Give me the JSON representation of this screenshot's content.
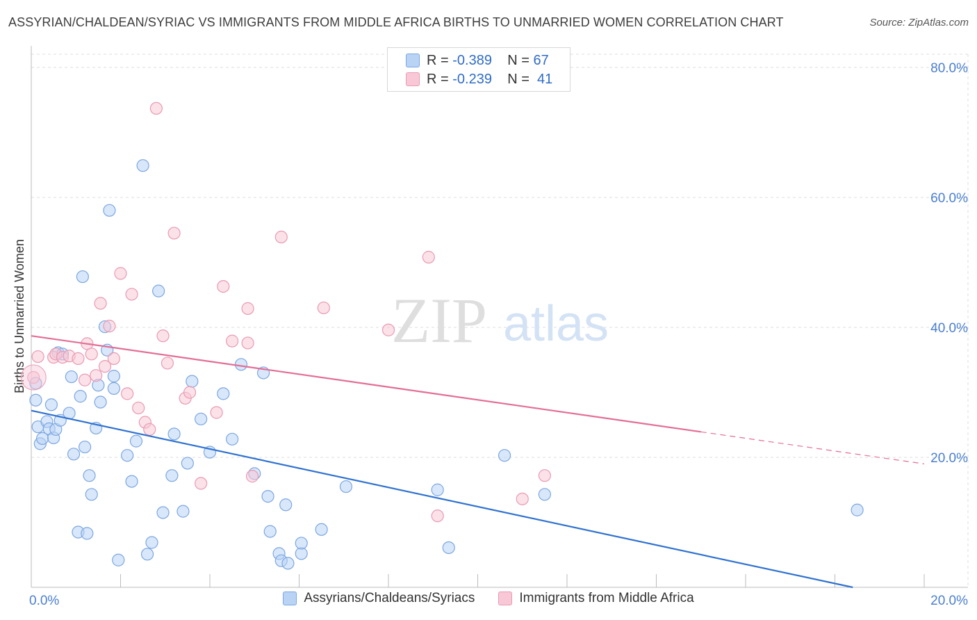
{
  "title": "ASSYRIAN/CHALDEAN/SYRIAC VS IMMIGRANTS FROM MIDDLE AFRICA BIRTHS TO UNMARRIED WOMEN CORRELATION CHART",
  "source": "Source: ZipAtlas.com",
  "watermark": {
    "zip": "ZIP",
    "atlas": "atlas"
  },
  "stats": [
    {
      "r_label": "R =",
      "r_value": "-0.389",
      "n_label": "N =",
      "n_value": "67"
    },
    {
      "r_label": "R =",
      "r_value": "-0.239",
      "n_label": "N =",
      "n_value": "41"
    }
  ],
  "legend": [
    "Assyrians/Chaldeans/Syriacs",
    "Immigrants from Middle Africa"
  ],
  "colors": {
    "blue_fill": "#b9d3f5",
    "blue_stroke": "#7ba6e0",
    "blue_line": "#2f72d0",
    "pink_fill": "#f8c8d6",
    "pink_stroke": "#e99ab3",
    "pink_line": "#e36d94",
    "tick_label": "#4a7fcf",
    "grid": "#dddddd"
  },
  "chart_data": {
    "type": "scatter",
    "title": "ASSYRIAN/CHALDEAN/SYRIAC VS IMMIGRANTS FROM MIDDLE AFRICA BIRTHS TO UNMARRIED WOMEN CORRELATION CHART",
    "xlabel": "",
    "ylabel": "Births to Unmarried Women",
    "xlim": [
      0,
      20
    ],
    "ylim": [
      0,
      80
    ],
    "x_tick_labels": [
      "0.0%",
      "20.0%"
    ],
    "y_ticks": [
      20,
      40,
      60,
      80
    ],
    "y_tick_labels": [
      "20.0%",
      "40.0%",
      "60.0%",
      "80.0%"
    ],
    "legend_position": "bottom-center",
    "grid": true,
    "series": [
      {
        "name": "Assyrians/Chaldeans/Syriacs",
        "color": "#2f72d0",
        "trend": {
          "x0": 0,
          "y0": 27.2,
          "x1": 18.4,
          "y1": 0,
          "solid_until": 18.4
        },
        "points": [
          [
            0.1,
            31.4
          ],
          [
            0.1,
            28.8
          ],
          [
            0.15,
            24.7
          ],
          [
            0.2,
            22.1
          ],
          [
            0.25,
            22.9
          ],
          [
            0.35,
            25.5
          ],
          [
            0.4,
            24.4
          ],
          [
            0.45,
            28.1
          ],
          [
            0.5,
            23.0
          ],
          [
            0.55,
            24.3
          ],
          [
            0.6,
            36.1
          ],
          [
            0.65,
            25.7
          ],
          [
            0.7,
            35.9
          ],
          [
            0.85,
            26.8
          ],
          [
            0.9,
            32.4
          ],
          [
            0.95,
            20.5
          ],
          [
            1.05,
            8.5
          ],
          [
            1.1,
            29.4
          ],
          [
            1.15,
            47.8
          ],
          [
            1.2,
            21.6
          ],
          [
            1.25,
            8.3
          ],
          [
            1.3,
            17.2
          ],
          [
            1.35,
            14.3
          ],
          [
            1.45,
            24.5
          ],
          [
            1.5,
            31.1
          ],
          [
            1.55,
            28.5
          ],
          [
            1.65,
            40.1
          ],
          [
            1.7,
            36.5
          ],
          [
            1.75,
            58.0
          ],
          [
            1.85,
            32.5
          ],
          [
            1.85,
            30.6
          ],
          [
            1.95,
            4.2
          ],
          [
            2.15,
            20.3
          ],
          [
            2.25,
            16.3
          ],
          [
            2.35,
            22.5
          ],
          [
            2.5,
            64.9
          ],
          [
            2.6,
            5.1
          ],
          [
            2.7,
            6.9
          ],
          [
            2.85,
            45.6
          ],
          [
            2.95,
            11.5
          ],
          [
            3.15,
            17.2
          ],
          [
            3.2,
            23.6
          ],
          [
            3.4,
            11.7
          ],
          [
            3.5,
            19.1
          ],
          [
            3.6,
            31.7
          ],
          [
            3.8,
            25.9
          ],
          [
            4.0,
            20.8
          ],
          [
            4.3,
            29.8
          ],
          [
            4.5,
            22.8
          ],
          [
            4.7,
            34.3
          ],
          [
            5.0,
            17.5
          ],
          [
            5.2,
            33.0
          ],
          [
            5.3,
            14.0
          ],
          [
            5.55,
            5.2
          ],
          [
            5.6,
            4.1
          ],
          [
            5.7,
            12.7
          ],
          [
            5.75,
            3.7
          ],
          [
            5.35,
            8.6
          ],
          [
            6.05,
            5.2
          ],
          [
            6.05,
            6.8
          ],
          [
            6.5,
            8.9
          ],
          [
            7.05,
            15.5
          ],
          [
            9.1,
            15.0
          ],
          [
            9.35,
            6.1
          ],
          [
            10.6,
            20.3
          ],
          [
            11.5,
            14.3
          ],
          [
            18.5,
            11.9
          ]
        ]
      },
      {
        "name": "Immigrants from Middle Africa",
        "color": "#e36d94",
        "trend": {
          "x0": 0,
          "y0": 38.7,
          "x1": 20,
          "y1": 19.0,
          "solid_until": 15.0
        },
        "points": [
          [
            0.05,
            32.3
          ],
          [
            0.15,
            35.5
          ],
          [
            0.5,
            35.4
          ],
          [
            0.55,
            35.9
          ],
          [
            0.7,
            35.4
          ],
          [
            0.85,
            35.6
          ],
          [
            1.05,
            35.2
          ],
          [
            1.2,
            31.9
          ],
          [
            1.25,
            37.5
          ],
          [
            1.35,
            35.9
          ],
          [
            1.45,
            32.6
          ],
          [
            1.55,
            43.7
          ],
          [
            1.65,
            34.0
          ],
          [
            1.75,
            40.2
          ],
          [
            1.85,
            35.2
          ],
          [
            2.0,
            48.3
          ],
          [
            2.15,
            29.8
          ],
          [
            2.25,
            45.1
          ],
          [
            2.4,
            27.6
          ],
          [
            2.55,
            25.4
          ],
          [
            2.65,
            24.3
          ],
          [
            2.95,
            38.7
          ],
          [
            3.05,
            34.5
          ],
          [
            3.2,
            54.5
          ],
          [
            3.45,
            29.1
          ],
          [
            3.55,
            30.0
          ],
          [
            3.8,
            16.0
          ],
          [
            4.15,
            26.9
          ],
          [
            4.3,
            46.3
          ],
          [
            4.5,
            37.9
          ],
          [
            4.85,
            42.9
          ],
          [
            4.85,
            37.6
          ],
          [
            4.95,
            17.1
          ],
          [
            5.6,
            53.9
          ],
          [
            6.55,
            43.0
          ],
          [
            8.0,
            39.6
          ],
          [
            8.9,
            50.8
          ],
          [
            9.1,
            11.0
          ],
          [
            11.0,
            13.6
          ],
          [
            11.5,
            17.2
          ],
          [
            2.8,
            73.7
          ]
        ]
      }
    ]
  }
}
